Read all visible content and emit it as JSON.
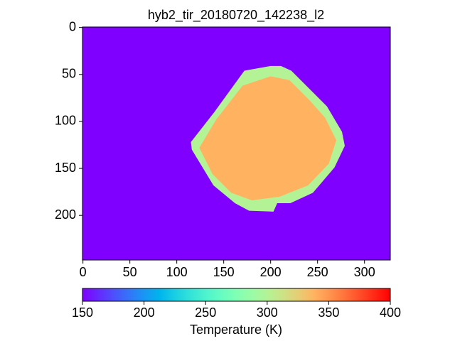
{
  "chart_data": {
    "type": "image",
    "title": "hyb2_tir_20180720_142238_l2",
    "xlim": [
      -0.5,
      327.5
    ],
    "ylim": [
      247.5,
      -0.5
    ],
    "xticks": [
      0,
      50,
      100,
      150,
      200,
      250,
      300
    ],
    "yticks": [
      0,
      50,
      100,
      150,
      200
    ],
    "colormap": "rainbow",
    "clim": [
      150,
      400
    ],
    "background_value": 150,
    "regions": [
      {
        "value": 300,
        "outline": [
          [
            200,
            41
          ],
          [
            211,
            41
          ],
          [
            222,
            46
          ],
          [
            245,
            69
          ],
          [
            260,
            84
          ],
          [
            276,
            111
          ],
          [
            279,
            126
          ],
          [
            268,
            149
          ],
          [
            245,
            176
          ],
          [
            221,
            187
          ],
          [
            207,
            187
          ],
          [
            203,
            196
          ],
          [
            177,
            195
          ],
          [
            162,
            187
          ],
          [
            139,
            168
          ],
          [
            116,
            130
          ],
          [
            115,
            122
          ],
          [
            140,
            90
          ],
          [
            172,
            46
          ]
        ]
      },
      {
        "value": 338,
        "outline": [
          [
            200,
            52
          ],
          [
            220,
            56
          ],
          [
            242,
            78
          ],
          [
            258,
            96
          ],
          [
            270,
            120
          ],
          [
            262,
            145
          ],
          [
            240,
            168
          ],
          [
            210,
            180
          ],
          [
            180,
            184
          ],
          [
            158,
            176
          ],
          [
            138,
            156
          ],
          [
            124,
            128
          ],
          [
            142,
            98
          ],
          [
            170,
            62
          ]
        ]
      }
    ],
    "colorbar": {
      "label": "Temperature (K)",
      "ticks": [
        150,
        200,
        250,
        300,
        350,
        400
      ]
    }
  }
}
